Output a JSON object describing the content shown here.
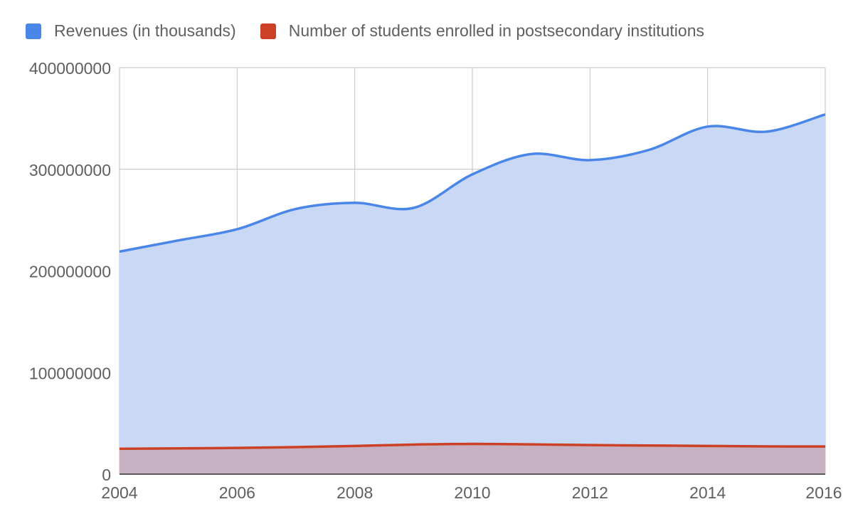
{
  "chart_data": {
    "type": "area",
    "x": [
      2004,
      2005,
      2006,
      2007,
      2008,
      2009,
      2010,
      2011,
      2012,
      2013,
      2014,
      2015,
      2016
    ],
    "series": [
      {
        "name": "Revenues (in thousands)",
        "color": "#4a86e8",
        "fill": "#c9d9f5",
        "values": [
          219000000,
          230000000,
          241000000,
          261000000,
          267000000,
          262000000,
          295000000,
          315000000,
          309000000,
          319000000,
          342000000,
          337000000,
          354000000
        ]
      },
      {
        "name": "Number of students enrolled in postsecondary institutions",
        "color": "#cc4125",
        "fill": "#c7aebf",
        "values": [
          25000000,
          25400000,
          25800000,
          26600000,
          27800000,
          29100000,
          29800000,
          29300000,
          28600000,
          28200000,
          27800000,
          27300000,
          27200000
        ]
      }
    ],
    "xlim": [
      2004,
      2016
    ],
    "ylim": [
      0,
      400000000
    ],
    "x_ticks": [
      "2004",
      "2006",
      "2008",
      "2010",
      "2012",
      "2014",
      "2016"
    ],
    "y_ticks": [
      "0",
      "100000000",
      "200000000",
      "300000000",
      "400000000"
    ],
    "grid": true,
    "legend_position": "top-left"
  }
}
